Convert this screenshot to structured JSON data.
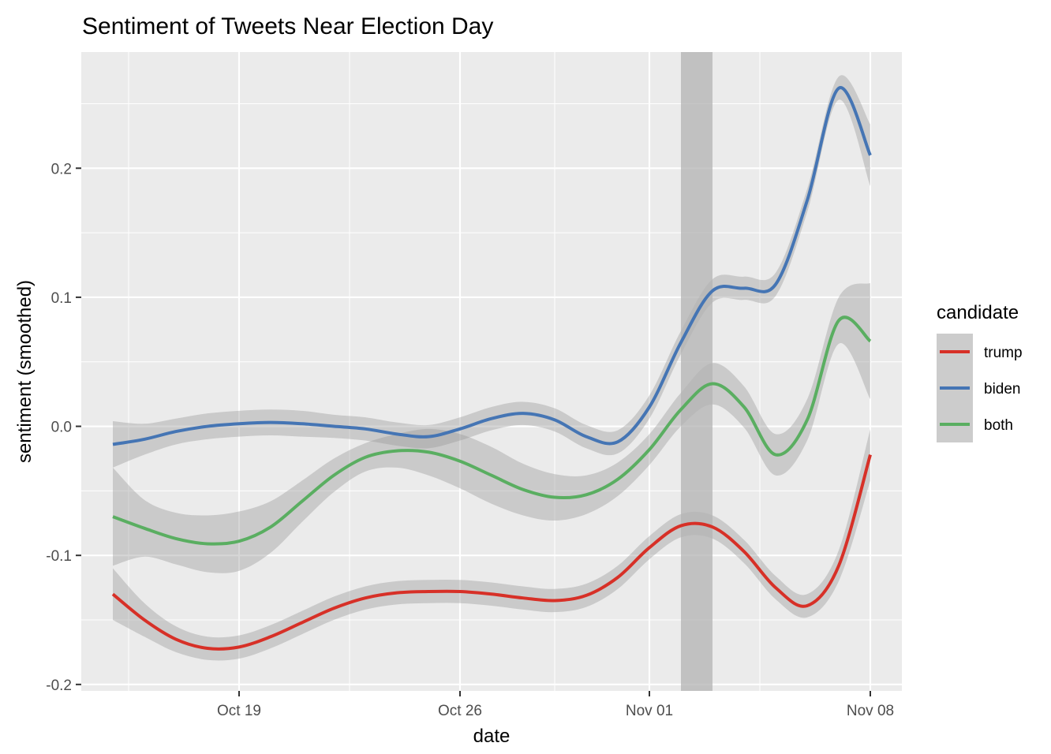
{
  "chart_data": {
    "type": "line",
    "title": "Sentiment of Tweets Near Election Day",
    "xlabel": "date",
    "ylabel": "sentiment (smoothed)",
    "x_range": [
      "2020-10-14",
      "2020-11-09"
    ],
    "ylim": [
      -0.205,
      0.29
    ],
    "x_ticks": [
      {
        "date": "2020-10-19",
        "label": "Oct 19"
      },
      {
        "date": "2020-10-26",
        "label": "Oct 26"
      },
      {
        "date": "2020-11-01",
        "label": "Nov 01"
      },
      {
        "date": "2020-11-08",
        "label": "Nov 08"
      }
    ],
    "y_ticks": [
      {
        "value": -0.2,
        "label": "-0.2"
      },
      {
        "value": -0.1,
        "label": "-0.1"
      },
      {
        "value": 0.0,
        "label": "0.0"
      },
      {
        "value": 0.1,
        "label": "0.1"
      },
      {
        "value": 0.2,
        "label": "0.2"
      }
    ],
    "highlight_band": {
      "from": "2020-11-02",
      "to": "2020-11-03",
      "color": "#b3b3b3"
    },
    "grid": true,
    "legend": {
      "title": "candidate",
      "position": "right"
    },
    "series": [
      {
        "name": "trump",
        "color": "#d73027",
        "points": [
          {
            "x": "2020-10-15",
            "y": -0.13,
            "se": 0.02
          },
          {
            "x": "2020-10-16",
            "y": -0.15,
            "se": 0.013
          },
          {
            "x": "2020-10-17",
            "y": -0.165,
            "se": 0.01
          },
          {
            "x": "2020-10-18",
            "y": -0.172,
            "se": 0.009
          },
          {
            "x": "2020-10-19",
            "y": -0.171,
            "se": 0.009
          },
          {
            "x": "2020-10-20",
            "y": -0.163,
            "se": 0.009
          },
          {
            "x": "2020-10-21",
            "y": -0.152,
            "se": 0.009
          },
          {
            "x": "2020-10-22",
            "y": -0.141,
            "se": 0.009
          },
          {
            "x": "2020-10-23",
            "y": -0.133,
            "se": 0.009
          },
          {
            "x": "2020-10-24",
            "y": -0.129,
            "se": 0.009
          },
          {
            "x": "2020-10-25",
            "y": -0.128,
            "se": 0.009
          },
          {
            "x": "2020-10-26",
            "y": -0.128,
            "se": 0.009
          },
          {
            "x": "2020-10-27",
            "y": -0.13,
            "se": 0.009
          },
          {
            "x": "2020-10-28",
            "y": -0.133,
            "se": 0.009
          },
          {
            "x": "2020-10-29",
            "y": -0.135,
            "se": 0.009
          },
          {
            "x": "2020-10-30",
            "y": -0.131,
            "se": 0.009
          },
          {
            "x": "2020-10-31",
            "y": -0.117,
            "se": 0.009
          },
          {
            "x": "2020-11-01",
            "y": -0.094,
            "se": 0.009
          },
          {
            "x": "2020-11-02",
            "y": -0.077,
            "se": 0.009
          },
          {
            "x": "2020-11-03",
            "y": -0.078,
            "se": 0.009
          },
          {
            "x": "2020-11-04",
            "y": -0.097,
            "se": 0.009
          },
          {
            "x": "2020-11-05",
            "y": -0.125,
            "se": 0.009
          },
          {
            "x": "2020-11-06",
            "y": -0.139,
            "se": 0.009
          },
          {
            "x": "2020-11-07",
            "y": -0.108,
            "se": 0.012
          },
          {
            "x": "2020-11-08",
            "y": -0.022,
            "se": 0.02
          }
        ]
      },
      {
        "name": "biden",
        "color": "#4575b4",
        "points": [
          {
            "x": "2020-10-15",
            "y": -0.014,
            "se": 0.018
          },
          {
            "x": "2020-10-16",
            "y": -0.01,
            "se": 0.012
          },
          {
            "x": "2020-10-17",
            "y": -0.004,
            "se": 0.01
          },
          {
            "x": "2020-10-18",
            "y": 0.0,
            "se": 0.01
          },
          {
            "x": "2020-10-19",
            "y": 0.002,
            "se": 0.01
          },
          {
            "x": "2020-10-20",
            "y": 0.003,
            "se": 0.01
          },
          {
            "x": "2020-10-21",
            "y": 0.002,
            "se": 0.01
          },
          {
            "x": "2020-10-22",
            "y": 0.0,
            "se": 0.009
          },
          {
            "x": "2020-10-23",
            "y": -0.002,
            "se": 0.009
          },
          {
            "x": "2020-10-24",
            "y": -0.006,
            "se": 0.009
          },
          {
            "x": "2020-10-25",
            "y": -0.008,
            "se": 0.009
          },
          {
            "x": "2020-10-26",
            "y": -0.002,
            "se": 0.009
          },
          {
            "x": "2020-10-27",
            "y": 0.006,
            "se": 0.009
          },
          {
            "x": "2020-10-28",
            "y": 0.01,
            "se": 0.009
          },
          {
            "x": "2020-10-29",
            "y": 0.005,
            "se": 0.009
          },
          {
            "x": "2020-10-30",
            "y": -0.008,
            "se": 0.009
          },
          {
            "x": "2020-10-31",
            "y": -0.012,
            "se": 0.009
          },
          {
            "x": "2020-11-01",
            "y": 0.015,
            "se": 0.009
          },
          {
            "x": "2020-11-02",
            "y": 0.065,
            "se": 0.009
          },
          {
            "x": "2020-11-03",
            "y": 0.105,
            "se": 0.009
          },
          {
            "x": "2020-11-04",
            "y": 0.107,
            "se": 0.009
          },
          {
            "x": "2020-11-05",
            "y": 0.11,
            "se": 0.009
          },
          {
            "x": "2020-11-06",
            "y": 0.175,
            "se": 0.009
          },
          {
            "x": "2020-11-07",
            "y": 0.262,
            "se": 0.009
          },
          {
            "x": "2020-11-08",
            "y": 0.21,
            "se": 0.024
          }
        ]
      },
      {
        "name": "both",
        "color": "#5aae61",
        "points": [
          {
            "x": "2020-10-15",
            "y": -0.07,
            "se": 0.038
          },
          {
            "x": "2020-10-16",
            "y": -0.079,
            "se": 0.022
          },
          {
            "x": "2020-10-17",
            "y": -0.087,
            "se": 0.02
          },
          {
            "x": "2020-10-18",
            "y": -0.091,
            "se": 0.022
          },
          {
            "x": "2020-10-19",
            "y": -0.089,
            "se": 0.023
          },
          {
            "x": "2020-10-20",
            "y": -0.078,
            "se": 0.02
          },
          {
            "x": "2020-10-21",
            "y": -0.058,
            "se": 0.016
          },
          {
            "x": "2020-10-22",
            "y": -0.038,
            "se": 0.013
          },
          {
            "x": "2020-10-23",
            "y": -0.024,
            "se": 0.011
          },
          {
            "x": "2020-10-24",
            "y": -0.019,
            "se": 0.013
          },
          {
            "x": "2020-10-25",
            "y": -0.02,
            "se": 0.018
          },
          {
            "x": "2020-10-26",
            "y": -0.027,
            "se": 0.021
          },
          {
            "x": "2020-10-27",
            "y": -0.038,
            "se": 0.022
          },
          {
            "x": "2020-10-28",
            "y": -0.049,
            "se": 0.02
          },
          {
            "x": "2020-10-29",
            "y": -0.055,
            "se": 0.018
          },
          {
            "x": "2020-10-30",
            "y": -0.053,
            "se": 0.015
          },
          {
            "x": "2020-10-31",
            "y": -0.041,
            "se": 0.013
          },
          {
            "x": "2020-11-01",
            "y": -0.018,
            "se": 0.012
          },
          {
            "x": "2020-11-02",
            "y": 0.013,
            "se": 0.013
          },
          {
            "x": "2020-11-03",
            "y": 0.033,
            "se": 0.016
          },
          {
            "x": "2020-11-04",
            "y": 0.015,
            "se": 0.016
          },
          {
            "x": "2020-11-05",
            "y": -0.022,
            "se": 0.016
          },
          {
            "x": "2020-11-06",
            "y": 0.005,
            "se": 0.016
          },
          {
            "x": "2020-11-07",
            "y": 0.082,
            "se": 0.018
          },
          {
            "x": "2020-11-08",
            "y": 0.066,
            "se": 0.045
          }
        ]
      }
    ]
  }
}
